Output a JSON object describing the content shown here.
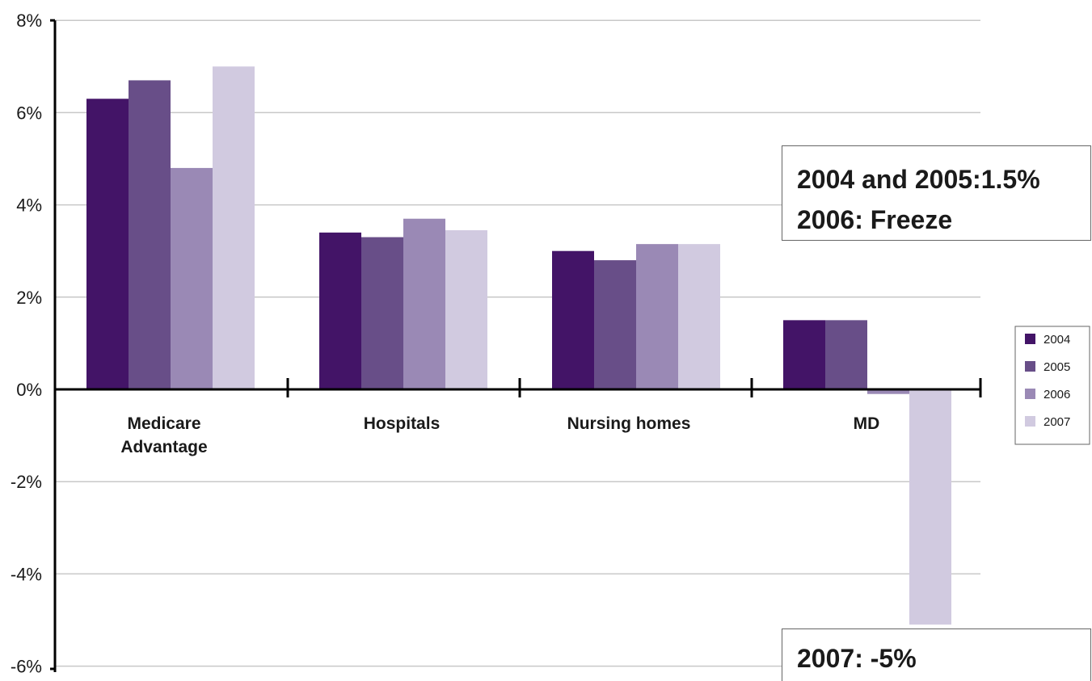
{
  "chart_data": {
    "type": "bar",
    "categories": [
      "Medicare\nAdvantage",
      "Hospitals",
      "Nursing homes",
      "MD"
    ],
    "series": [
      {
        "name": "2004",
        "color": "#431467",
        "values": [
          6.3,
          3.4,
          3.0,
          1.5
        ]
      },
      {
        "name": "2005",
        "color": "#684e88",
        "values": [
          6.7,
          3.3,
          2.8,
          1.5
        ]
      },
      {
        "name": "2006",
        "color": "#9a89b5",
        "values": [
          4.8,
          3.7,
          3.15,
          -0.1
        ]
      },
      {
        "name": "2007",
        "color": "#d1cae0",
        "values": [
          7.0,
          3.45,
          3.15,
          -5.1
        ]
      }
    ],
    "y_ticks": [
      "8%",
      "6%",
      "4%",
      "2%",
      "0%",
      "-2%",
      "-4%",
      "-6%"
    ],
    "y_tick_values": [
      8,
      6,
      4,
      2,
      0,
      -2,
      -4,
      -6
    ],
    "ylim": [
      -6,
      8
    ],
    "grid": true,
    "legend_position": "right",
    "title": "",
    "xlabel": "",
    "ylabel": "",
    "annotations": [
      {
        "lines": [
          "2004 and 2005:1.5%",
          "2006: Freeze"
        ]
      },
      {
        "lines": [
          "2007: -5%"
        ]
      }
    ]
  }
}
